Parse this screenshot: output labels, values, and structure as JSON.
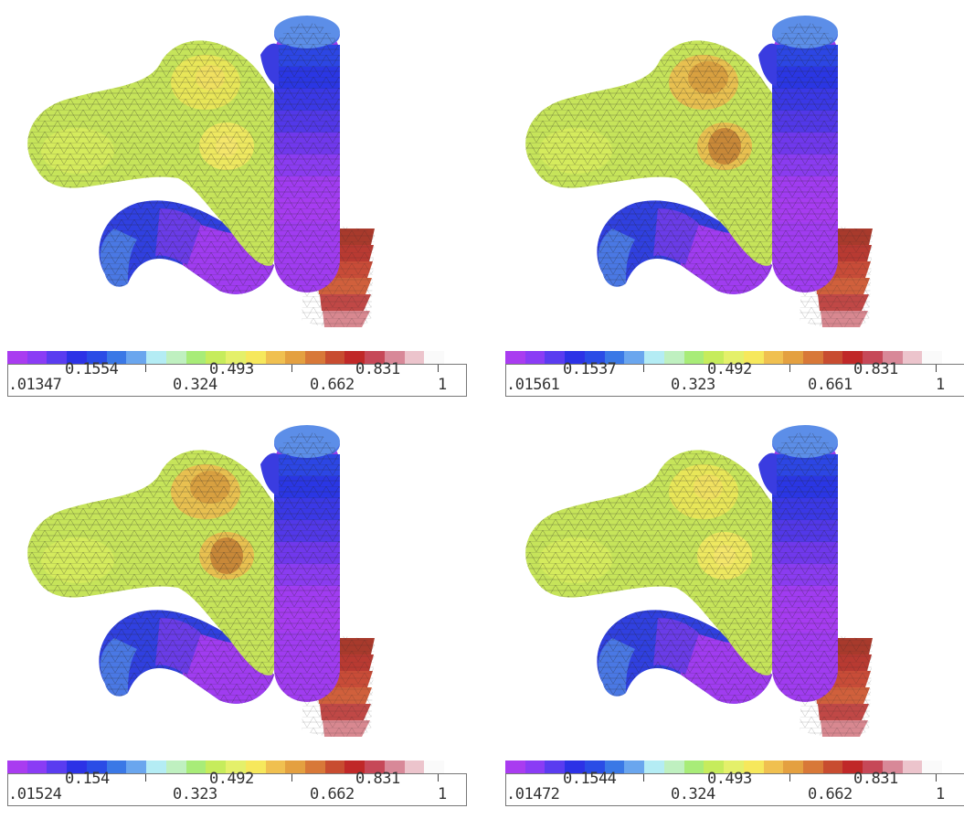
{
  "palette": [
    "#a93cf0",
    "#8a3cf5",
    "#5a3cf0",
    "#2c32e6",
    "#2a4ce6",
    "#3a78e6",
    "#6aa6ee",
    "#b4ecf4",
    "#bff0c0",
    "#a8ec78",
    "#c6ec5c",
    "#e4f06a",
    "#f6e85c",
    "#f0c050",
    "#e4a040",
    "#d87838",
    "#c84c30",
    "#c02828",
    "#c64858",
    "#d88898",
    "#ecc4cc",
    "#fafafa"
  ],
  "panels": [
    {
      "id": "top-left",
      "hot_spots": false,
      "colorbar": {
        "low_labels": [
          ".01347",
          "0.324",
          "0.662",
          "1"
        ],
        "high_labels": [
          "0.1554",
          "0.493",
          "0.831"
        ]
      }
    },
    {
      "id": "top-right",
      "hot_spots": true,
      "colorbar": {
        "low_labels": [
          ".01561",
          "0.323",
          "0.661",
          "1"
        ],
        "high_labels": [
          "0.1537",
          "0.492",
          "0.831"
        ]
      }
    },
    {
      "id": "bottom-left",
      "hot_spots": true,
      "colorbar": {
        "low_labels": [
          ".01524",
          "0.323",
          "0.662",
          "1"
        ],
        "high_labels": [
          "0.154",
          "0.492",
          "0.831"
        ]
      }
    },
    {
      "id": "bottom-right",
      "hot_spots": false,
      "colorbar": {
        "low_labels": [
          ".01472",
          "0.324",
          "0.662",
          "1"
        ],
        "high_labels": [
          "0.1544",
          "0.493",
          "0.831"
        ]
      }
    }
  ]
}
